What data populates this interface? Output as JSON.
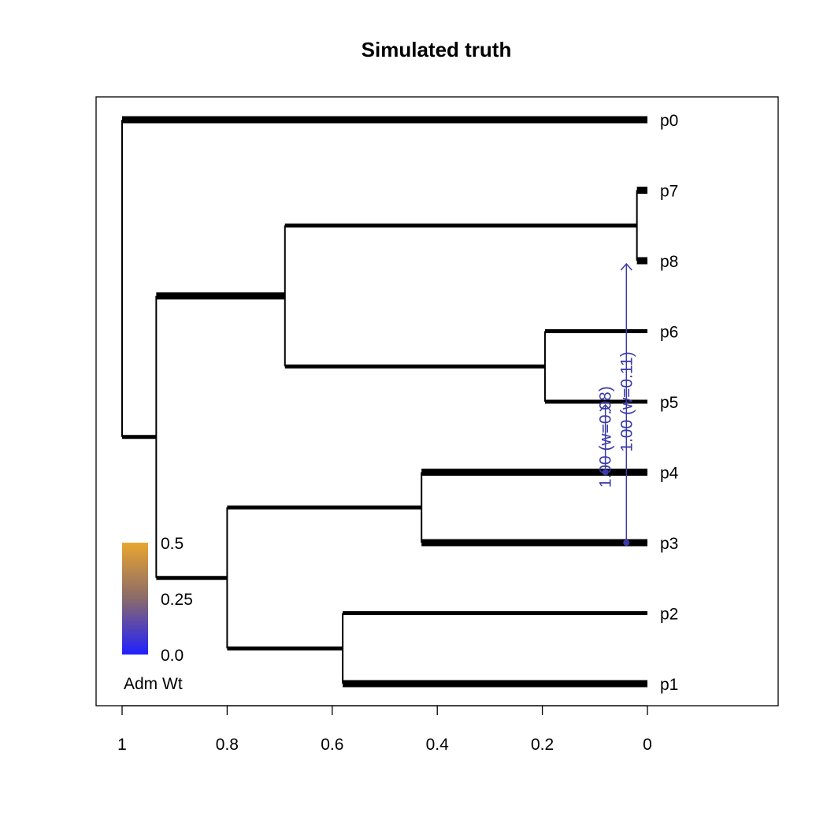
{
  "chart_data": {
    "type": "tree",
    "title": "Simulated truth",
    "xlabel": "",
    "ylabel": "",
    "xlim": [
      1,
      0
    ],
    "x_ticks": [
      {
        "value": 1,
        "label": "1"
      },
      {
        "value": 0.8,
        "label": "0.8"
      },
      {
        "value": 0.6,
        "label": "0.6"
      },
      {
        "value": 0.4,
        "label": "0.4"
      },
      {
        "value": 0.2,
        "label": "0.2"
      },
      {
        "value": 0,
        "label": "0"
      }
    ],
    "leaf_order": [
      "p0",
      "p7",
      "p8",
      "p6",
      "p5",
      "p4",
      "p3",
      "p2",
      "p1"
    ],
    "nodes": [
      {
        "id": "root",
        "x": 1.0,
        "parent": null
      },
      {
        "id": "n1",
        "x": 0.935,
        "parent": "root"
      },
      {
        "id": "n2",
        "x": 0.69,
        "parent": "n1"
      },
      {
        "id": "n3",
        "x": 0.8,
        "parent": "n1"
      },
      {
        "id": "n4",
        "x": 0.02,
        "parent": "n2"
      },
      {
        "id": "n5",
        "x": 0.195,
        "parent": "n2"
      },
      {
        "id": "n6",
        "x": 0.43,
        "parent": "n3"
      },
      {
        "id": "n7",
        "x": 0.58,
        "parent": "n3"
      }
    ],
    "leaves": [
      {
        "name": "p0",
        "x": 0,
        "parent": "root"
      },
      {
        "name": "p7",
        "x": 0,
        "parent": "n4"
      },
      {
        "name": "p8",
        "x": 0,
        "parent": "n4"
      },
      {
        "name": "p6",
        "x": 0,
        "parent": "n5"
      },
      {
        "name": "p5",
        "x": 0,
        "parent": "n5"
      },
      {
        "name": "p4",
        "x": 0,
        "parent": "n6"
      },
      {
        "name": "p3",
        "x": 0,
        "parent": "n6"
      },
      {
        "name": "p2",
        "x": 0,
        "parent": "n7"
      },
      {
        "name": "p1",
        "x": 0,
        "parent": "n7"
      }
    ],
    "branch_weights": {
      "root-n1": "thin",
      "root-p0": "thick",
      "n1-n2": "thick",
      "n1-n3": "thin",
      "n2-n4": "thin",
      "n2-n5": "thin",
      "n4-p7": "thick",
      "n4-p8": "thick",
      "n5-p6": "thin",
      "n5-p5": "thin",
      "n3-n6": "thin",
      "n3-n7": "thin",
      "n6-p4": "thick",
      "n6-p3": "thick",
      "n7-p2": "thin",
      "n7-p1": "thick"
    },
    "migrations": [
      {
        "label": "1.00 (w=0.08)",
        "weight": 0.08,
        "from_branch": "n6-p4",
        "to_branch": "n5-p5",
        "x": 0.08
      },
      {
        "label": "1.00 (w=0.11)",
        "weight": 0.11,
        "from_branch": "n6-p3",
        "to_branch": "n4-p8",
        "x": 0.04
      }
    ],
    "legend": {
      "title": "Adm Wt",
      "labels": [
        "0.5",
        "0.25",
        "0.0"
      ],
      "values": [
        0.5,
        0.25,
        0.0
      ],
      "colors": [
        "#e8a630",
        "#8a6a6a",
        "#2020ff"
      ],
      "placement": "bottom-left"
    },
    "colors": {
      "tree": "#000000",
      "migration": "#3a3aa8"
    }
  }
}
